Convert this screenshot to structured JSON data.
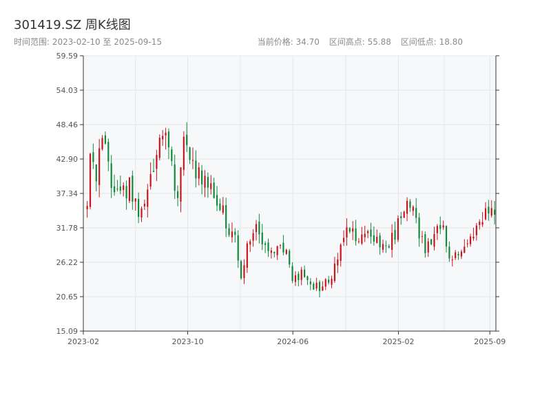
{
  "chart_data": {
    "type": "candlestick",
    "title": "301419.SZ 周K线图",
    "subtitle": "时间范围: 2023-02-10 至 2025-09-15",
    "stats": {
      "current_price": "当前价格: 34.70",
      "range_high": "区间高点: 55.88",
      "range_low": "区间低点: 18.80"
    },
    "up_color": "#c8161d",
    "down_color": "#118a3c",
    "x_range": [
      "2023-02-01",
      "2025-09-15"
    ],
    "ylim": [
      15.09,
      59.59
    ],
    "y_ticks": [
      15.09,
      20.65,
      26.22,
      31.78,
      37.34,
      42.9,
      48.46,
      54.03,
      59.59
    ],
    "y_tick_labels": [
      "15.09",
      "20.65",
      "26.22",
      "31.78",
      "37.34",
      "42.90",
      "48.46",
      "54.03",
      "59.59"
    ],
    "x_ticks": [
      "2023-02-01",
      "2023-10-01",
      "2024-06-01",
      "2025-02-01",
      "2025-09-01"
    ],
    "x_tick_labels": [
      "2023-02",
      "2023-10",
      "2024-06",
      "2025-02",
      "2025-09"
    ],
    "grid": true,
    "anchors": [
      [
        "2023-02-10",
        35.0
      ],
      [
        "2023-02-17",
        42.0
      ],
      [
        "2023-03-03",
        41.0
      ],
      [
        "2023-03-17",
        46.0
      ],
      [
        "2023-04-07",
        40.0
      ],
      [
        "2023-04-28",
        37.0
      ],
      [
        "2023-05-19",
        38.5
      ],
      [
        "2023-06-09",
        34.5
      ],
      [
        "2023-06-30",
        37.0
      ],
      [
        "2023-07-21",
        44.0
      ],
      [
        "2023-08-11",
        47.0
      ],
      [
        "2023-08-25",
        41.0
      ],
      [
        "2023-09-08",
        38.0
      ],
      [
        "2023-09-22",
        47.0
      ],
      [
        "2023-10-06",
        42.0
      ],
      [
        "2023-10-27",
        41.0
      ],
      [
        "2023-11-17",
        39.0
      ],
      [
        "2023-12-08",
        37.0
      ],
      [
        "2023-12-29",
        33.0
      ],
      [
        "2024-01-19",
        30.0
      ],
      [
        "2024-02-02",
        23.0
      ],
      [
        "2024-02-16",
        30.0
      ],
      [
        "2024-03-08",
        32.0
      ],
      [
        "2024-03-29",
        28.0
      ],
      [
        "2024-04-19",
        27.0
      ],
      [
        "2024-05-10",
        29.0
      ],
      [
        "2024-05-31",
        24.0
      ],
      [
        "2024-06-21",
        24.5
      ],
      [
        "2024-07-12",
        22.5
      ],
      [
        "2024-08-02",
        22.0
      ],
      [
        "2024-08-23",
        23.0
      ],
      [
        "2024-09-06",
        25.5
      ],
      [
        "2024-09-20",
        28.0
      ],
      [
        "2024-10-04",
        33.0
      ],
      [
        "2024-10-25",
        30.0
      ],
      [
        "2024-11-15",
        32.0
      ],
      [
        "2024-12-06",
        30.5
      ],
      [
        "2024-12-27",
        28.5
      ],
      [
        "2025-01-17",
        30.0
      ],
      [
        "2025-02-07",
        33.0
      ],
      [
        "2025-02-28",
        35.5
      ],
      [
        "2025-03-14",
        32.0
      ],
      [
        "2025-04-04",
        28.0
      ],
      [
        "2025-04-25",
        31.0
      ],
      [
        "2025-05-16",
        31.5
      ],
      [
        "2025-05-30",
        26.5
      ],
      [
        "2025-06-20",
        27.0
      ],
      [
        "2025-07-11",
        29.0
      ],
      [
        "2025-08-01",
        31.0
      ],
      [
        "2025-08-22",
        34.0
      ],
      [
        "2025-09-15",
        34.7
      ]
    ]
  }
}
